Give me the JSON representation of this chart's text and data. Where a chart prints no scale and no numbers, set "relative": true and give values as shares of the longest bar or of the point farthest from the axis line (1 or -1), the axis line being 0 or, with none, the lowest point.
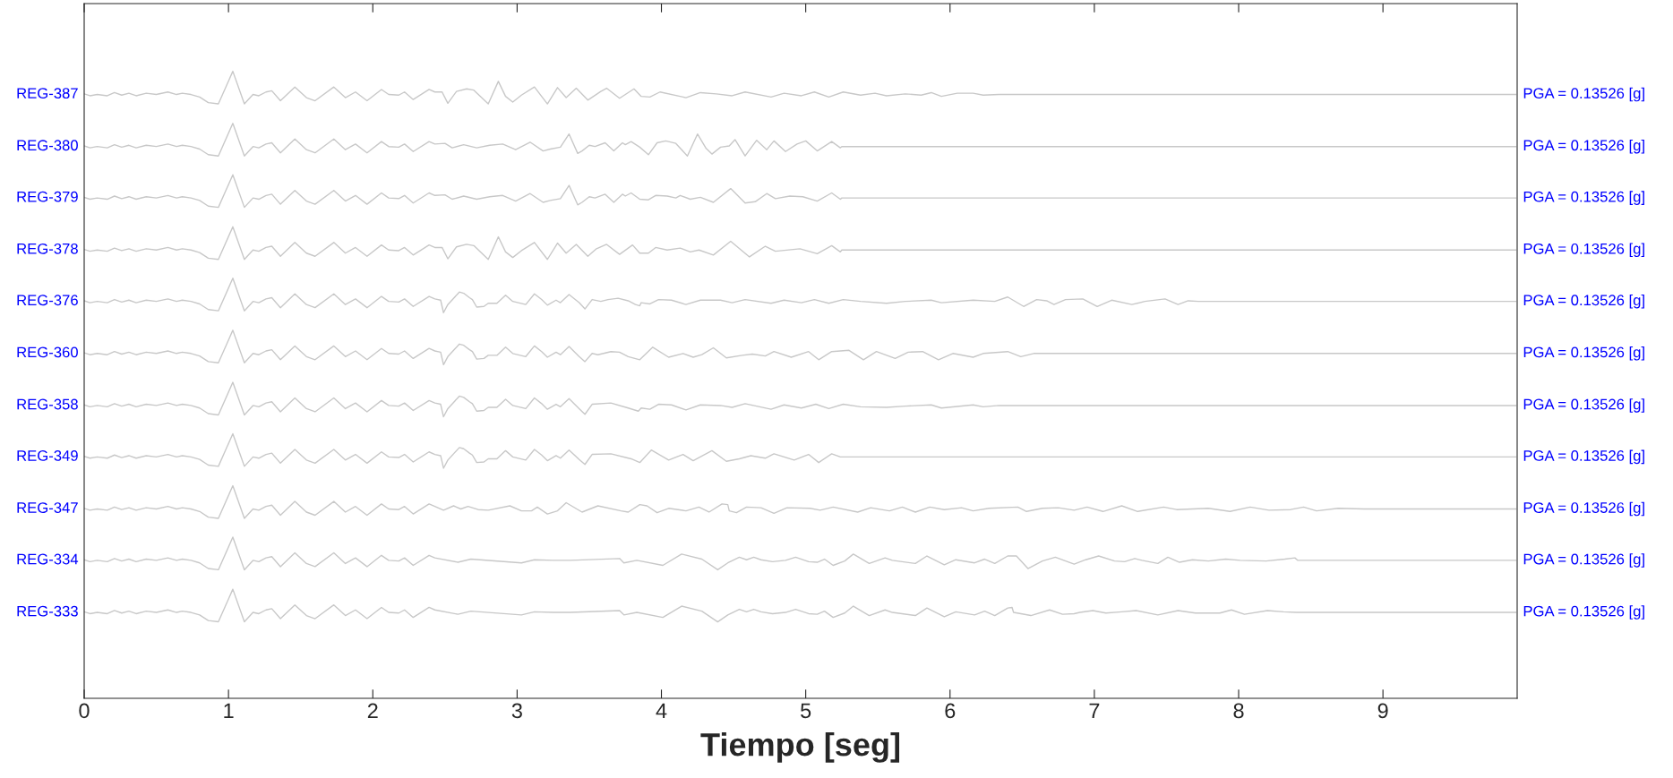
{
  "chart_data": {
    "type": "line",
    "relative": true,
    "xlabel": "Tiempo [seg]",
    "xlim": [
      0,
      9.93
    ],
    "xticks": [
      0,
      1,
      2,
      3,
      4,
      5,
      6,
      7,
      8,
      9
    ],
    "tick_labels": "x",
    "series": [
      {
        "name": "REG-387",
        "color": "#c8c8c8",
        "x": [
          0,
          0.04,
          0.09,
          0.16,
          0.21,
          0.26,
          0.31,
          0.36,
          0.43,
          0.5,
          0.58,
          0.64,
          0.68,
          0.74,
          0.8,
          0.86,
          0.93,
          1.03,
          1.11,
          1.17,
          1.21,
          1.26,
          1.3,
          1.36,
          1.46,
          1.54,
          1.6,
          1.73,
          1.81,
          1.88,
          1.96,
          2.06,
          2.11,
          2.18,
          2.22,
          2.28,
          2.39,
          2.43,
          2.48,
          2.52,
          2.58,
          2.65,
          2.7,
          2.8,
          2.87,
          2.92,
          2.97,
          3.03,
          3.12,
          3.21,
          3.28,
          3.34,
          3.41,
          3.49,
          3.58,
          3.62,
          3.71,
          3.81,
          3.86,
          3.92,
          3.99,
          4.17,
          4.27,
          4.38,
          4.49,
          4.58,
          4.76,
          4.85,
          4.97,
          5.06,
          5.16,
          5.26,
          5.38,
          5.48,
          5.56,
          5.69,
          5.8,
          5.87,
          5.94,
          6.05,
          6.16,
          6.23,
          6.34,
          9.92
        ],
        "values": [
          0.964,
          0.961,
          0.963,
          0.961,
          0.966,
          0.962,
          0.965,
          0.961,
          0.965,
          0.963,
          0.967,
          0.963,
          0.965,
          0.963,
          0.959,
          0.95,
          0.948,
          1.0,
          0.948,
          0.963,
          0.961,
          0.967,
          0.969,
          0.953,
          0.975,
          0.958,
          0.953,
          0.975,
          0.958,
          0.967,
          0.953,
          0.971,
          0.963,
          0.962,
          0.967,
          0.955,
          0.971,
          0.967,
          0.967,
          0.949,
          0.968,
          0.972,
          0.97,
          0.948,
          0.984,
          0.96,
          0.951,
          0.962,
          0.975,
          0.948,
          0.974,
          0.958,
          0.973,
          0.954,
          0.968,
          0.973,
          0.957,
          0.972,
          0.96,
          0.959,
          0.967,
          0.958,
          0.966,
          0.964,
          0.961,
          0.967,
          0.959,
          0.965,
          0.961,
          0.967,
          0.959,
          0.967,
          0.962,
          0.965,
          0.961,
          0.964,
          0.962,
          0.966,
          0.96,
          0.965,
          0.965,
          0.962,
          0.963,
          0.963
        ]
      },
      {
        "name": "REG-380",
        "color": "#c8c8c8",
        "x": [
          0,
          0.04,
          0.09,
          0.16,
          0.21,
          0.26,
          0.31,
          0.36,
          0.43,
          0.5,
          0.58,
          0.64,
          0.68,
          0.74,
          0.8,
          0.86,
          0.93,
          1.03,
          1.11,
          1.17,
          1.21,
          1.26,
          1.3,
          1.36,
          1.46,
          1.54,
          1.6,
          1.73,
          1.81,
          1.88,
          1.96,
          2.06,
          2.11,
          2.18,
          2.22,
          2.28,
          2.39,
          2.43,
          2.5,
          2.55,
          2.63,
          2.72,
          2.81,
          2.9,
          2.99,
          3.09,
          3.18,
          3.23,
          3.3,
          3.36,
          3.42,
          3.45,
          3.5,
          3.54,
          3.61,
          3.67,
          3.73,
          3.75,
          3.79,
          3.85,
          3.91,
          3.97,
          4.03,
          4.1,
          4.18,
          4.25,
          4.31,
          4.35,
          4.41,
          4.47,
          4.51,
          4.58,
          4.66,
          4.73,
          4.78,
          4.86,
          4.94,
          5.0,
          5.08,
          5.18,
          5.24,
          5.25,
          9.92
        ],
        "values": [
          0.881,
          0.878,
          0.88,
          0.878,
          0.883,
          0.879,
          0.882,
          0.878,
          0.882,
          0.88,
          0.884,
          0.88,
          0.882,
          0.88,
          0.876,
          0.867,
          0.865,
          0.917,
          0.865,
          0.88,
          0.878,
          0.884,
          0.886,
          0.87,
          0.892,
          0.875,
          0.87,
          0.892,
          0.875,
          0.884,
          0.87,
          0.888,
          0.88,
          0.879,
          0.884,
          0.872,
          0.888,
          0.884,
          0.885,
          0.878,
          0.883,
          0.878,
          0.882,
          0.884,
          0.875,
          0.887,
          0.873,
          0.876,
          0.879,
          0.9,
          0.869,
          0.873,
          0.882,
          0.88,
          0.886,
          0.873,
          0.886,
          0.883,
          0.888,
          0.879,
          0.867,
          0.886,
          0.889,
          0.885,
          0.865,
          0.9,
          0.877,
          0.868,
          0.879,
          0.881,
          0.891,
          0.865,
          0.89,
          0.875,
          0.889,
          0.872,
          0.884,
          0.889,
          0.873,
          0.888,
          0.878,
          0.88,
          0.88
        ]
      },
      {
        "name": "REG-379",
        "color": "#c8c8c8",
        "x": [
          0,
          0.04,
          0.09,
          0.16,
          0.21,
          0.26,
          0.31,
          0.36,
          0.43,
          0.5,
          0.58,
          0.64,
          0.68,
          0.74,
          0.8,
          0.86,
          0.93,
          1.03,
          1.11,
          1.17,
          1.21,
          1.26,
          1.3,
          1.36,
          1.46,
          1.54,
          1.6,
          1.73,
          1.81,
          1.88,
          1.96,
          2.06,
          2.11,
          2.18,
          2.22,
          2.28,
          2.39,
          2.43,
          2.5,
          2.55,
          2.63,
          2.72,
          2.81,
          2.9,
          2.99,
          3.09,
          3.18,
          3.23,
          3.3,
          3.36,
          3.42,
          3.45,
          3.5,
          3.54,
          3.61,
          3.67,
          3.73,
          3.75,
          3.79,
          3.85,
          3.91,
          3.96,
          4.04,
          4.1,
          4.13,
          4.2,
          4.27,
          4.36,
          4.48,
          4.58,
          4.65,
          4.73,
          4.79,
          4.89,
          4.98,
          5.08,
          5.18,
          5.24,
          5.25,
          9.92
        ],
        "values": [
          0.799,
          0.796,
          0.798,
          0.796,
          0.801,
          0.797,
          0.8,
          0.796,
          0.8,
          0.798,
          0.802,
          0.798,
          0.8,
          0.798,
          0.794,
          0.785,
          0.783,
          0.835,
          0.783,
          0.798,
          0.796,
          0.802,
          0.804,
          0.788,
          0.81,
          0.793,
          0.788,
          0.81,
          0.793,
          0.802,
          0.788,
          0.806,
          0.798,
          0.797,
          0.802,
          0.79,
          0.806,
          0.802,
          0.803,
          0.796,
          0.801,
          0.796,
          0.8,
          0.802,
          0.793,
          0.805,
          0.791,
          0.794,
          0.797,
          0.818,
          0.787,
          0.791,
          0.8,
          0.798,
          0.804,
          0.791,
          0.804,
          0.801,
          0.806,
          0.796,
          0.795,
          0.802,
          0.801,
          0.798,
          0.802,
          0.796,
          0.799,
          0.791,
          0.813,
          0.79,
          0.792,
          0.805,
          0.797,
          0.801,
          0.8,
          0.793,
          0.806,
          0.796,
          0.798,
          0.798
        ]
      },
      {
        "name": "REG-378",
        "color": "#c8c8c8",
        "x": [
          0,
          0.04,
          0.09,
          0.16,
          0.21,
          0.26,
          0.31,
          0.36,
          0.43,
          0.5,
          0.58,
          0.64,
          0.68,
          0.74,
          0.8,
          0.86,
          0.93,
          1.03,
          1.11,
          1.17,
          1.21,
          1.26,
          1.3,
          1.36,
          1.46,
          1.54,
          1.6,
          1.73,
          1.81,
          1.88,
          1.96,
          2.06,
          2.11,
          2.18,
          2.22,
          2.28,
          2.39,
          2.43,
          2.48,
          2.52,
          2.58,
          2.65,
          2.7,
          2.8,
          2.87,
          2.92,
          2.97,
          3.03,
          3.12,
          3.21,
          3.28,
          3.34,
          3.41,
          3.49,
          3.55,
          3.62,
          3.71,
          3.8,
          3.85,
          3.91,
          3.96,
          4.04,
          4.13,
          4.2,
          4.26,
          4.36,
          4.48,
          4.61,
          4.72,
          4.79,
          4.96,
          5.08,
          5.18,
          5.24,
          5.25,
          9.92
        ],
        "values": [
          0.716,
          0.713,
          0.715,
          0.713,
          0.718,
          0.714,
          0.717,
          0.713,
          0.717,
          0.715,
          0.719,
          0.715,
          0.717,
          0.715,
          0.711,
          0.702,
          0.7,
          0.752,
          0.7,
          0.715,
          0.713,
          0.719,
          0.721,
          0.705,
          0.727,
          0.71,
          0.705,
          0.727,
          0.71,
          0.719,
          0.705,
          0.723,
          0.715,
          0.714,
          0.719,
          0.707,
          0.723,
          0.719,
          0.719,
          0.701,
          0.72,
          0.724,
          0.722,
          0.7,
          0.736,
          0.712,
          0.703,
          0.714,
          0.727,
          0.7,
          0.726,
          0.71,
          0.724,
          0.705,
          0.717,
          0.724,
          0.708,
          0.723,
          0.71,
          0.71,
          0.719,
          0.715,
          0.718,
          0.712,
          0.715,
          0.707,
          0.729,
          0.704,
          0.721,
          0.713,
          0.717,
          0.709,
          0.722,
          0.712,
          0.715,
          0.715
        ]
      },
      {
        "name": "REG-376",
        "color": "#c8c8c8",
        "x": [
          0,
          0.04,
          0.09,
          0.16,
          0.21,
          0.26,
          0.31,
          0.36,
          0.43,
          0.5,
          0.58,
          0.64,
          0.68,
          0.74,
          0.8,
          0.86,
          0.93,
          1.03,
          1.11,
          1.17,
          1.21,
          1.26,
          1.3,
          1.36,
          1.46,
          1.54,
          1.6,
          1.73,
          1.81,
          1.88,
          1.96,
          2.06,
          2.11,
          2.18,
          2.22,
          2.28,
          2.39,
          2.43,
          2.47,
          2.49,
          2.52,
          2.56,
          2.6,
          2.63,
          2.67,
          2.69,
          2.72,
          2.77,
          2.8,
          2.86,
          2.92,
          2.97,
          3.06,
          3.12,
          3.17,
          3.21,
          3.27,
          3.3,
          3.36,
          3.43,
          3.47,
          3.52,
          3.58,
          3.63,
          3.7,
          3.77,
          3.82,
          3.85,
          3.86,
          3.92,
          3.98,
          4.07,
          4.17,
          4.27,
          4.41,
          4.49,
          4.58,
          4.76,
          4.85,
          4.97,
          5.06,
          5.16,
          5.26,
          5.38,
          5.56,
          5.69,
          5.87,
          5.94,
          6.16,
          6.31,
          6.4,
          6.51,
          6.6,
          6.67,
          6.72,
          6.8,
          6.92,
          7.02,
          7.12,
          7.26,
          7.35,
          7.49,
          7.58,
          7.65,
          7.72,
          9.92
        ],
        "values": [
          0.634,
          0.631,
          0.633,
          0.631,
          0.636,
          0.632,
          0.635,
          0.631,
          0.635,
          0.633,
          0.637,
          0.633,
          0.635,
          0.633,
          0.629,
          0.62,
          0.618,
          0.67,
          0.618,
          0.633,
          0.631,
          0.637,
          0.639,
          0.623,
          0.645,
          0.628,
          0.623,
          0.645,
          0.628,
          0.637,
          0.623,
          0.641,
          0.633,
          0.632,
          0.637,
          0.625,
          0.641,
          0.637,
          0.635,
          0.615,
          0.628,
          0.638,
          0.648,
          0.646,
          0.639,
          0.636,
          0.624,
          0.625,
          0.63,
          0.63,
          0.643,
          0.633,
          0.628,
          0.645,
          0.636,
          0.627,
          0.635,
          0.631,
          0.644,
          0.631,
          0.621,
          0.636,
          0.633,
          0.636,
          0.638,
          0.634,
          0.628,
          0.626,
          0.631,
          0.629,
          0.636,
          0.635,
          0.628,
          0.635,
          0.635,
          0.631,
          0.636,
          0.63,
          0.635,
          0.631,
          0.636,
          0.63,
          0.636,
          0.633,
          0.63,
          0.633,
          0.635,
          0.631,
          0.635,
          0.633,
          0.64,
          0.625,
          0.636,
          0.634,
          0.628,
          0.636,
          0.637,
          0.625,
          0.635,
          0.628,
          0.633,
          0.637,
          0.628,
          0.634,
          0.633,
          0.633
        ]
      },
      {
        "name": "REG-360",
        "color": "#c8c8c8",
        "x": [
          0,
          0.04,
          0.09,
          0.16,
          0.21,
          0.26,
          0.31,
          0.36,
          0.43,
          0.5,
          0.58,
          0.64,
          0.68,
          0.74,
          0.8,
          0.86,
          0.93,
          1.03,
          1.11,
          1.17,
          1.21,
          1.26,
          1.3,
          1.36,
          1.46,
          1.54,
          1.6,
          1.73,
          1.81,
          1.88,
          1.96,
          2.06,
          2.11,
          2.18,
          2.22,
          2.28,
          2.39,
          2.43,
          2.47,
          2.49,
          2.52,
          2.56,
          2.6,
          2.63,
          2.67,
          2.69,
          2.72,
          2.77,
          2.8,
          2.86,
          2.92,
          2.97,
          3.06,
          3.12,
          3.17,
          3.21,
          3.27,
          3.3,
          3.36,
          3.43,
          3.47,
          3.52,
          3.56,
          3.65,
          3.71,
          3.77,
          3.85,
          3.94,
          4.05,
          4.15,
          4.22,
          4.28,
          4.36,
          4.45,
          4.56,
          4.63,
          4.72,
          4.78,
          4.9,
          5.02,
          5.09,
          5.18,
          5.3,
          5.4,
          5.49,
          5.62,
          5.71,
          5.81,
          5.92,
          6.02,
          6.16,
          6.23,
          6.4,
          6.49,
          6.58,
          6.63,
          9.92
        ],
        "values": [
          0.551,
          0.548,
          0.55,
          0.548,
          0.553,
          0.549,
          0.552,
          0.548,
          0.552,
          0.55,
          0.554,
          0.55,
          0.552,
          0.55,
          0.546,
          0.537,
          0.535,
          0.587,
          0.535,
          0.55,
          0.548,
          0.554,
          0.556,
          0.54,
          0.562,
          0.545,
          0.54,
          0.562,
          0.545,
          0.554,
          0.54,
          0.558,
          0.55,
          0.549,
          0.554,
          0.542,
          0.558,
          0.554,
          0.552,
          0.532,
          0.545,
          0.555,
          0.565,
          0.563,
          0.556,
          0.553,
          0.541,
          0.542,
          0.547,
          0.547,
          0.56,
          0.55,
          0.545,
          0.562,
          0.553,
          0.544,
          0.552,
          0.548,
          0.561,
          0.545,
          0.537,
          0.55,
          0.548,
          0.553,
          0.552,
          0.545,
          0.54,
          0.56,
          0.544,
          0.55,
          0.544,
          0.548,
          0.559,
          0.543,
          0.547,
          0.549,
          0.546,
          0.553,
          0.544,
          0.553,
          0.54,
          0.553,
          0.555,
          0.54,
          0.553,
          0.542,
          0.552,
          0.553,
          0.54,
          0.55,
          0.544,
          0.55,
          0.553,
          0.545,
          0.55,
          0.55,
          0.55
        ]
      },
      {
        "name": "REG-358",
        "color": "#c8c8c8",
        "x": [
          0,
          0.04,
          0.09,
          0.16,
          0.21,
          0.26,
          0.31,
          0.36,
          0.43,
          0.5,
          0.58,
          0.64,
          0.68,
          0.74,
          0.8,
          0.86,
          0.93,
          1.03,
          1.11,
          1.17,
          1.21,
          1.26,
          1.3,
          1.36,
          1.46,
          1.54,
          1.6,
          1.73,
          1.81,
          1.88,
          1.96,
          2.06,
          2.11,
          2.18,
          2.22,
          2.28,
          2.39,
          2.43,
          2.47,
          2.49,
          2.52,
          2.56,
          2.6,
          2.63,
          2.67,
          2.69,
          2.72,
          2.77,
          2.8,
          2.86,
          2.92,
          2.97,
          3.06,
          3.12,
          3.17,
          3.21,
          3.27,
          3.3,
          3.36,
          3.43,
          3.47,
          3.52,
          3.65,
          3.77,
          3.84,
          3.86,
          3.92,
          3.98,
          4.07,
          4.17,
          4.27,
          4.41,
          4.49,
          4.58,
          4.76,
          4.85,
          4.97,
          5.07,
          5.16,
          5.26,
          5.38,
          5.56,
          5.69,
          5.87,
          5.94,
          6.16,
          6.23,
          6.34,
          9.92
        ],
        "values": [
          0.468,
          0.465,
          0.467,
          0.465,
          0.47,
          0.466,
          0.469,
          0.465,
          0.469,
          0.467,
          0.471,
          0.467,
          0.469,
          0.467,
          0.463,
          0.454,
          0.452,
          0.504,
          0.452,
          0.467,
          0.465,
          0.471,
          0.473,
          0.457,
          0.479,
          0.462,
          0.457,
          0.479,
          0.462,
          0.471,
          0.457,
          0.475,
          0.467,
          0.466,
          0.471,
          0.459,
          0.475,
          0.471,
          0.469,
          0.449,
          0.462,
          0.472,
          0.482,
          0.48,
          0.473,
          0.47,
          0.458,
          0.459,
          0.464,
          0.464,
          0.477,
          0.467,
          0.462,
          0.479,
          0.47,
          0.461,
          0.469,
          0.465,
          0.478,
          0.462,
          0.453,
          0.469,
          0.471,
          0.463,
          0.458,
          0.463,
          0.461,
          0.469,
          0.468,
          0.46,
          0.468,
          0.467,
          0.464,
          0.47,
          0.461,
          0.468,
          0.463,
          0.469,
          0.462,
          0.469,
          0.465,
          0.464,
          0.466,
          0.468,
          0.463,
          0.468,
          0.465,
          0.467,
          0.467
        ]
      },
      {
        "name": "REG-349",
        "color": "#c8c8c8",
        "x": [
          0,
          0.04,
          0.09,
          0.16,
          0.21,
          0.26,
          0.31,
          0.36,
          0.43,
          0.5,
          0.58,
          0.64,
          0.68,
          0.74,
          0.8,
          0.86,
          0.93,
          1.03,
          1.11,
          1.17,
          1.21,
          1.26,
          1.3,
          1.36,
          1.46,
          1.54,
          1.6,
          1.73,
          1.81,
          1.88,
          1.96,
          2.06,
          2.11,
          2.18,
          2.22,
          2.28,
          2.39,
          2.43,
          2.47,
          2.49,
          2.52,
          2.56,
          2.6,
          2.63,
          2.67,
          2.69,
          2.72,
          2.77,
          2.8,
          2.86,
          2.92,
          2.97,
          3.06,
          3.12,
          3.17,
          3.21,
          3.27,
          3.3,
          3.36,
          3.43,
          3.47,
          3.52,
          3.65,
          3.79,
          3.85,
          3.93,
          4.05,
          4.15,
          4.22,
          4.35,
          4.45,
          4.54,
          4.62,
          4.72,
          4.78,
          4.92,
          5.02,
          5.09,
          5.18,
          5.24,
          9.92
        ],
        "values": [
          0.386,
          0.383,
          0.385,
          0.383,
          0.388,
          0.384,
          0.387,
          0.383,
          0.387,
          0.385,
          0.389,
          0.385,
          0.387,
          0.385,
          0.381,
          0.372,
          0.37,
          0.422,
          0.37,
          0.385,
          0.383,
          0.389,
          0.391,
          0.375,
          0.397,
          0.38,
          0.375,
          0.397,
          0.38,
          0.389,
          0.375,
          0.393,
          0.385,
          0.384,
          0.389,
          0.377,
          0.393,
          0.389,
          0.387,
          0.367,
          0.38,
          0.39,
          0.4,
          0.398,
          0.391,
          0.388,
          0.376,
          0.377,
          0.382,
          0.382,
          0.395,
          0.385,
          0.38,
          0.397,
          0.388,
          0.379,
          0.387,
          0.383,
          0.396,
          0.381,
          0.373,
          0.389,
          0.39,
          0.382,
          0.376,
          0.396,
          0.38,
          0.389,
          0.379,
          0.395,
          0.378,
          0.382,
          0.387,
          0.383,
          0.39,
          0.38,
          0.389,
          0.376,
          0.39,
          0.385,
          0.385
        ]
      },
      {
        "name": "REG-347",
        "color": "#c8c8c8",
        "x": [
          0,
          0.04,
          0.09,
          0.16,
          0.21,
          0.26,
          0.31,
          0.36,
          0.43,
          0.5,
          0.58,
          0.64,
          0.68,
          0.74,
          0.8,
          0.86,
          0.93,
          1.03,
          1.11,
          1.17,
          1.21,
          1.26,
          1.3,
          1.36,
          1.46,
          1.54,
          1.6,
          1.73,
          1.81,
          1.88,
          1.96,
          2.06,
          2.11,
          2.18,
          2.22,
          2.28,
          2.39,
          2.43,
          2.49,
          2.56,
          2.61,
          2.66,
          2.73,
          2.8,
          2.95,
          3.03,
          3.1,
          3.14,
          3.21,
          3.28,
          3.34,
          3.45,
          3.56,
          3.72,
          3.77,
          3.85,
          3.9,
          3.97,
          4.05,
          4.17,
          4.26,
          4.33,
          4.42,
          4.46,
          4.47,
          4.52,
          4.59,
          4.69,
          4.78,
          4.87,
          5.03,
          5.1,
          5.19,
          5.36,
          5.45,
          5.58,
          5.67,
          5.76,
          5.86,
          5.96,
          6.08,
          6.16,
          6.27,
          6.47,
          6.53,
          6.64,
          6.75,
          6.86,
          6.95,
          7.06,
          7.19,
          7.3,
          7.48,
          7.57,
          7.79,
          7.94,
          8.08,
          8.21,
          8.36,
          8.45,
          8.54,
          8.69,
          8.87,
          9.92
        ],
        "values": [
          0.303,
          0.3,
          0.302,
          0.3,
          0.305,
          0.301,
          0.304,
          0.3,
          0.304,
          0.302,
          0.306,
          0.302,
          0.304,
          0.302,
          0.298,
          0.289,
          0.287,
          0.339,
          0.287,
          0.302,
          0.3,
          0.306,
          0.308,
          0.292,
          0.314,
          0.297,
          0.292,
          0.314,
          0.297,
          0.306,
          0.292,
          0.31,
          0.302,
          0.301,
          0.306,
          0.294,
          0.31,
          0.306,
          0.3,
          0.307,
          0.302,
          0.306,
          0.301,
          0.3,
          0.307,
          0.299,
          0.299,
          0.305,
          0.294,
          0.299,
          0.312,
          0.297,
          0.307,
          0.299,
          0.297,
          0.309,
          0.307,
          0.296,
          0.303,
          0.299,
          0.305,
          0.297,
          0.31,
          0.309,
          0.299,
          0.296,
          0.305,
          0.304,
          0.295,
          0.304,
          0.303,
          0.3,
          0.305,
          0.297,
          0.304,
          0.299,
          0.305,
          0.297,
          0.305,
          0.301,
          0.304,
          0.299,
          0.303,
          0.305,
          0.298,
          0.303,
          0.304,
          0.3,
          0.305,
          0.298,
          0.307,
          0.298,
          0.305,
          0.301,
          0.303,
          0.298,
          0.305,
          0.3,
          0.301,
          0.305,
          0.299,
          0.303,
          0.302,
          0.302
        ]
      },
      {
        "name": "REG-334",
        "color": "#c8c8c8",
        "x": [
          0,
          0.04,
          0.09,
          0.16,
          0.21,
          0.26,
          0.31,
          0.36,
          0.43,
          0.5,
          0.58,
          0.64,
          0.68,
          0.74,
          0.8,
          0.86,
          0.93,
          1.03,
          1.11,
          1.17,
          1.21,
          1.26,
          1.3,
          1.36,
          1.46,
          1.54,
          1.6,
          1.73,
          1.81,
          1.88,
          1.96,
          2.06,
          2.11,
          2.18,
          2.22,
          2.28,
          2.39,
          2.43,
          2.59,
          2.68,
          3.03,
          3.12,
          3.25,
          3.37,
          3.71,
          3.74,
          3.83,
          4.01,
          4.14,
          4.28,
          4.39,
          4.46,
          4.54,
          4.59,
          4.64,
          4.69,
          4.77,
          4.86,
          4.93,
          5.02,
          5.08,
          5.13,
          5.19,
          5.27,
          5.33,
          5.44,
          5.55,
          5.6,
          5.76,
          5.84,
          5.96,
          6.04,
          6.17,
          6.24,
          6.31,
          6.4,
          6.46,
          6.54,
          6.64,
          6.73,
          6.86,
          6.94,
          7.03,
          7.14,
          7.21,
          7.28,
          7.33,
          7.44,
          7.51,
          7.59,
          7.68,
          7.79,
          7.91,
          8.01,
          8.19,
          8.32,
          8.39,
          8.41,
          9.92
        ],
        "values": [
          0.221,
          0.218,
          0.22,
          0.218,
          0.223,
          0.219,
          0.222,
          0.218,
          0.222,
          0.22,
          0.224,
          0.22,
          0.222,
          0.22,
          0.216,
          0.207,
          0.205,
          0.257,
          0.205,
          0.22,
          0.218,
          0.224,
          0.226,
          0.21,
          0.232,
          0.215,
          0.21,
          0.232,
          0.215,
          0.224,
          0.21,
          0.228,
          0.22,
          0.219,
          0.224,
          0.212,
          0.228,
          0.224,
          0.217,
          0.222,
          0.216,
          0.221,
          0.22,
          0.22,
          0.223,
          0.216,
          0.22,
          0.212,
          0.23,
          0.222,
          0.205,
          0.216,
          0.225,
          0.221,
          0.225,
          0.221,
          0.218,
          0.22,
          0.225,
          0.218,
          0.217,
          0.222,
          0.212,
          0.219,
          0.23,
          0.215,
          0.224,
          0.22,
          0.215,
          0.227,
          0.213,
          0.221,
          0.216,
          0.222,
          0.215,
          0.227,
          0.227,
          0.207,
          0.219,
          0.225,
          0.214,
          0.221,
          0.227,
          0.219,
          0.218,
          0.223,
          0.22,
          0.215,
          0.225,
          0.217,
          0.221,
          0.219,
          0.222,
          0.22,
          0.219,
          0.222,
          0.224,
          0.22,
          0.22
        ]
      },
      {
        "name": "REG-333",
        "color": "#c8c8c8",
        "x": [
          0,
          0.04,
          0.09,
          0.16,
          0.21,
          0.26,
          0.31,
          0.36,
          0.43,
          0.5,
          0.58,
          0.64,
          0.68,
          0.74,
          0.8,
          0.86,
          0.93,
          1.03,
          1.11,
          1.17,
          1.21,
          1.26,
          1.3,
          1.36,
          1.46,
          1.54,
          1.6,
          1.73,
          1.81,
          1.88,
          1.96,
          2.06,
          2.11,
          2.18,
          2.22,
          2.28,
          2.39,
          2.43,
          2.59,
          2.68,
          3.03,
          3.12,
          3.25,
          3.37,
          3.71,
          3.74,
          3.83,
          4.01,
          4.14,
          4.28,
          4.39,
          4.46,
          4.54,
          4.59,
          4.64,
          4.69,
          4.77,
          4.86,
          4.93,
          5.02,
          5.08,
          5.13,
          5.19,
          5.27,
          5.33,
          5.44,
          5.55,
          5.6,
          5.76,
          5.84,
          5.96,
          6.04,
          6.17,
          6.24,
          6.31,
          6.4,
          6.43,
          6.44,
          6.56,
          6.69,
          6.78,
          6.86,
          6.9,
          6.99,
          7.08,
          7.19,
          7.29,
          7.44,
          7.58,
          7.7,
          7.87,
          7.95,
          8.04,
          8.2,
          8.31,
          8.4,
          9.92
        ],
        "values": [
          0.138,
          0.135,
          0.137,
          0.135,
          0.14,
          0.136,
          0.139,
          0.135,
          0.139,
          0.137,
          0.141,
          0.137,
          0.139,
          0.137,
          0.133,
          0.124,
          0.122,
          0.174,
          0.122,
          0.137,
          0.135,
          0.141,
          0.143,
          0.127,
          0.149,
          0.132,
          0.127,
          0.149,
          0.132,
          0.141,
          0.127,
          0.145,
          0.137,
          0.136,
          0.141,
          0.129,
          0.145,
          0.141,
          0.134,
          0.139,
          0.133,
          0.138,
          0.137,
          0.137,
          0.14,
          0.133,
          0.137,
          0.129,
          0.147,
          0.139,
          0.122,
          0.133,
          0.142,
          0.138,
          0.142,
          0.138,
          0.135,
          0.137,
          0.142,
          0.135,
          0.134,
          0.139,
          0.129,
          0.136,
          0.147,
          0.132,
          0.141,
          0.137,
          0.132,
          0.144,
          0.13,
          0.138,
          0.133,
          0.139,
          0.132,
          0.144,
          0.145,
          0.137,
          0.132,
          0.141,
          0.134,
          0.135,
          0.137,
          0.14,
          0.136,
          0.138,
          0.14,
          0.133,
          0.14,
          0.136,
          0.136,
          0.141,
          0.134,
          0.14,
          0.138,
          0.137,
          0.137
        ]
      }
    ],
    "annotations": [
      "PGA = 0.13526 [g]",
      "PGA = 0.13526 [g]",
      "PGA = 0.13526 [g]",
      "PGA = 0.13526 [g]",
      "PGA = 0.13526 [g]",
      "PGA = 0.13526 [g]",
      "PGA = 0.13526 [g]",
      "PGA = 0.13526 [g]",
      "PGA = 0.13526 [g]",
      "PGA = 0.13526 [g]",
      "PGA = 0.13526 [g]"
    ]
  }
}
